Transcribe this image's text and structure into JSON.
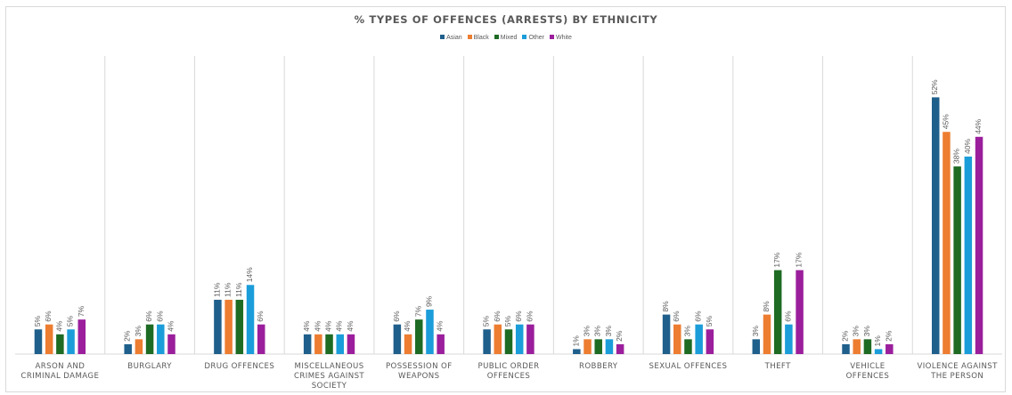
{
  "colors": {
    "Asian": "#1f5f8b",
    "Black": "#ed7d31",
    "Mixed": "#1e6b24",
    "Other": "#1b9dd9",
    "White": "#9b1f9c",
    "grid": "#d9d9d9",
    "text": "#595959"
  },
  "chart_data": {
    "type": "bar",
    "title": "% TYPES OF OFFENCES (ARRESTS) BY ETHNICITY",
    "xlabel": "",
    "ylabel": "",
    "ylim": [
      0,
      55
    ],
    "grid": "vertical category separators",
    "legend": "top-center",
    "value_suffix": "%",
    "categories": [
      [
        "ARSON AND",
        "CRIMINAL DAMAGE"
      ],
      [
        "BURGLARY"
      ],
      [
        "DRUG OFFENCES"
      ],
      [
        "MISCELLANEOUS",
        "CRIMES AGAINST",
        "SOCIETY"
      ],
      [
        "POSSESSION OF",
        "WEAPONS"
      ],
      [
        "PUBLIC ORDER",
        "OFFENCES"
      ],
      [
        "ROBBERY"
      ],
      [
        "SEXUAL OFFENCES"
      ],
      [
        "THEFT"
      ],
      [
        "VEHICLE",
        "OFFENCES"
      ],
      [
        "VIOLENCE AGAINST",
        "THE PERSON"
      ]
    ],
    "series": [
      {
        "name": "Asian",
        "values": [
          5,
          2,
          11,
          4,
          6,
          5,
          1,
          8,
          3,
          2,
          52
        ]
      },
      {
        "name": "Black",
        "values": [
          6,
          3,
          11,
          4,
          4,
          6,
          3,
          6,
          8,
          3,
          45
        ]
      },
      {
        "name": "Mixed",
        "values": [
          4,
          6,
          11,
          4,
          7,
          5,
          3,
          3,
          17,
          3,
          38
        ]
      },
      {
        "name": "Other",
        "values": [
          5,
          6,
          14,
          4,
          9,
          6,
          3,
          6,
          6,
          1,
          40
        ]
      },
      {
        "name": "White",
        "values": [
          7,
          4,
          6,
          4,
          4,
          6,
          2,
          5,
          17,
          2,
          44
        ]
      }
    ]
  }
}
